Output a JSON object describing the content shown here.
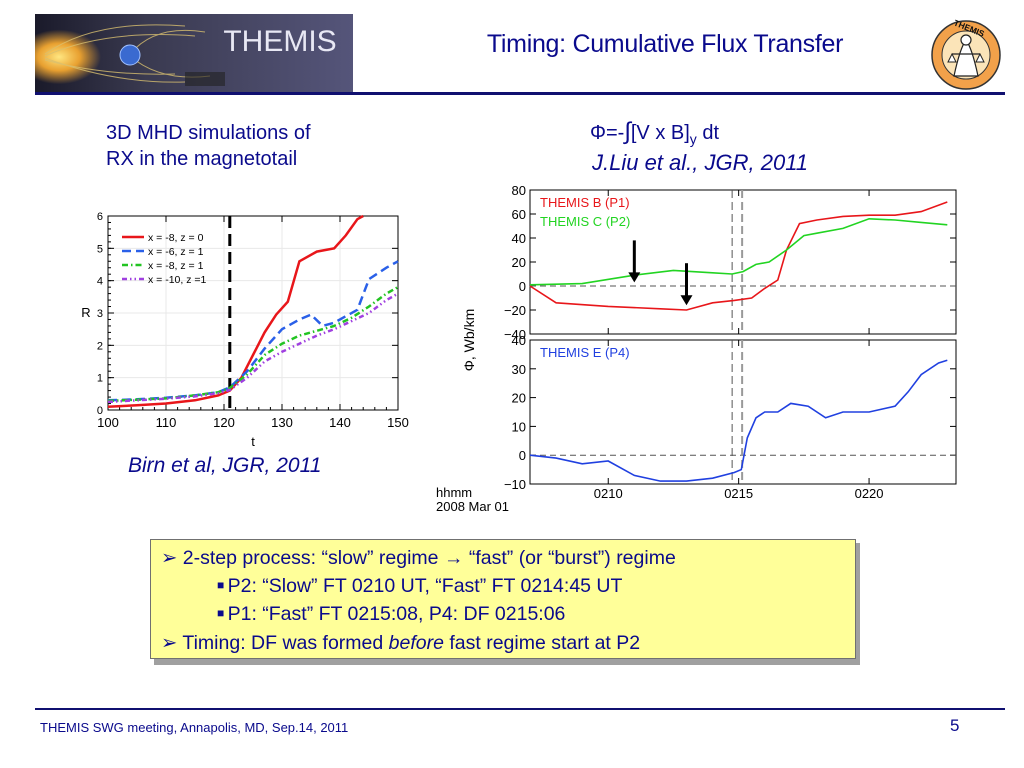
{
  "slide": {
    "title": "Timing: Cumulative Flux Transfer",
    "logo_text": "THEMIS",
    "badge_text": "THEMIS",
    "left_caption_line1": "3D MHD simulations of",
    "left_caption_line2": "RX in the magnetotail",
    "formula": {
      "prefix": "Φ=-",
      "integral": "∫",
      "body": "[V x B]",
      "sub": "y",
      "suffix": " dt"
    },
    "ref_right": "J.Liu et al., JGR, 2011",
    "ref_left": "Birn et al, JGR, 2011",
    "footer": "THEMIS SWG meeting, Annapolis, MD, Sep.14, 2011",
    "page": "5"
  },
  "summary": {
    "l1": {
      "pre": "2-step process: “slow” regime ",
      "arrow": "→",
      "post": " “fast” (or “burst”) regime"
    },
    "l2": "P2: “Slow” FT 0210 UT, “Fast” FT 0214:45 UT",
    "l3": "P1: “Fast”  FT 0215:08,  P4: DF 0215:06",
    "l4": {
      "pre": "Timing: DF was formed ",
      "em": "before",
      "post": " fast regime start at P2"
    }
  },
  "colors": {
    "title": "#0a0a8c",
    "red": "#e8161a",
    "green": "#22d422",
    "blue": "#2040e0",
    "violet": "#a040e0",
    "box": "#ffff99"
  },
  "chart_data": [
    {
      "type": "line",
      "xlabel": "t",
      "ylabel": "R",
      "xlim": [
        100,
        150
      ],
      "ylim": [
        0,
        6
      ],
      "xticks": [
        100,
        110,
        120,
        130,
        140,
        150
      ],
      "yticks": [
        0,
        1,
        2,
        3,
        4,
        5,
        6
      ],
      "vline": 121,
      "legend_position": "top-left",
      "series": [
        {
          "name": "x = -8, z = 0",
          "color": "#e8161a",
          "dash": "solid",
          "points": [
            [
              100,
              0.1
            ],
            [
              105,
              0.15
            ],
            [
              110,
              0.2
            ],
            [
              115,
              0.3
            ],
            [
              119,
              0.45
            ],
            [
              121,
              0.6
            ],
            [
              123,
              1.0
            ],
            [
              125,
              1.7
            ],
            [
              127,
              2.4
            ],
            [
              129,
              2.95
            ],
            [
              131,
              3.35
            ],
            [
              133,
              4.6
            ],
            [
              136,
              4.9
            ],
            [
              139,
              5.0
            ],
            [
              141,
              5.4
            ],
            [
              143,
              5.9
            ],
            [
              144,
              6.0
            ]
          ]
        },
        {
          "name": "x = -6, z = 1",
          "color": "#2a60e8",
          "dash": "long",
          "points": [
            [
              100,
              0.3
            ],
            [
              105,
              0.33
            ],
            [
              110,
              0.38
            ],
            [
              115,
              0.45
            ],
            [
              119,
              0.55
            ],
            [
              121,
              0.7
            ],
            [
              124,
              1.2
            ],
            [
              127,
              1.9
            ],
            [
              130,
              2.5
            ],
            [
              133,
              2.8
            ],
            [
              135,
              2.95
            ],
            [
              137,
              2.6
            ],
            [
              139,
              2.7
            ],
            [
              141,
              2.9
            ],
            [
              143,
              3.1
            ],
            [
              145,
              4.05
            ],
            [
              148,
              4.4
            ],
            [
              150,
              4.6
            ]
          ]
        },
        {
          "name": "x = -8, z = 1",
          "color": "#22c422",
          "dash": "dashdot",
          "points": [
            [
              100,
              0.28
            ],
            [
              105,
              0.32
            ],
            [
              110,
              0.36
            ],
            [
              115,
              0.45
            ],
            [
              119,
              0.55
            ],
            [
              121,
              0.68
            ],
            [
              124,
              1.1
            ],
            [
              127,
              1.7
            ],
            [
              130,
              2.05
            ],
            [
              133,
              2.3
            ],
            [
              136,
              2.45
            ],
            [
              139,
              2.6
            ],
            [
              142,
              2.85
            ],
            [
              145,
              3.2
            ],
            [
              148,
              3.6
            ],
            [
              150,
              3.8
            ]
          ]
        },
        {
          "name": "x = -10, z =1",
          "color": "#a040e0",
          "dash": "dashdotdot",
          "points": [
            [
              100,
              0.25
            ],
            [
              105,
              0.3
            ],
            [
              110,
              0.35
            ],
            [
              115,
              0.42
            ],
            [
              119,
              0.52
            ],
            [
              121,
              0.62
            ],
            [
              124,
              1.0
            ],
            [
              127,
              1.5
            ],
            [
              130,
              1.8
            ],
            [
              133,
              2.05
            ],
            [
              136,
              2.3
            ],
            [
              139,
              2.5
            ],
            [
              142,
              2.75
            ],
            [
              145,
              3.0
            ],
            [
              148,
              3.4
            ],
            [
              150,
              3.6
            ]
          ]
        }
      ]
    },
    {
      "type": "line",
      "ylabel": "Φ, Wb/km",
      "x_axis_title_line1": "hhmm",
      "x_axis_title_line2": "2008  Mar  01",
      "xticks": [
        "0210",
        "0215",
        "0220"
      ],
      "vlines": [
        "0214:45",
        "0215:08"
      ],
      "panels": [
        {
          "ylim": [
            -40,
            80
          ],
          "yticks": [
            80,
            60,
            40,
            20,
            0,
            -20,
            -40
          ],
          "series": [
            {
              "name": "THEMIS B (P1)",
              "color": "#e8161a",
              "points": [
                [
                  "0207:00",
                  0
                ],
                [
                  "0208:00",
                  -14
                ],
                [
                  "0210:00",
                  -17
                ],
                [
                  "0212:00",
                  -19
                ],
                [
                  "0213:00",
                  -20
                ],
                [
                  "0214:00",
                  -14
                ],
                [
                  "0214:50",
                  -12
                ],
                [
                  "0215:30",
                  -10
                ],
                [
                  "0216:00",
                  -2
                ],
                [
                  "0216:30",
                  5
                ],
                [
                  "0216:50",
                  30
                ],
                [
                  "0217:20",
                  52
                ],
                [
                  "0218:00",
                  55
                ],
                [
                  "0219:00",
                  58
                ],
                [
                  "0220:00",
                  59
                ],
                [
                  "0221:00",
                  59
                ],
                [
                  "0222:00",
                  62
                ],
                [
                  "0223:00",
                  70
                ]
              ]
            },
            {
              "name": "THEMIS C (P2)",
              "color": "#22d422",
              "points": [
                [
                  "0207:00",
                  1
                ],
                [
                  "0209:00",
                  2
                ],
                [
                  "0211:00",
                  9
                ],
                [
                  "0212:30",
                  13
                ],
                [
                  "0214:00",
                  11
                ],
                [
                  "0214:45",
                  10
                ],
                [
                  "0215:10",
                  12
                ],
                [
                  "0215:40",
                  18
                ],
                [
                  "0216:10",
                  20
                ],
                [
                  "0216:50",
                  30
                ],
                [
                  "0217:30",
                  42
                ],
                [
                  "0218:00",
                  44
                ],
                [
                  "0219:00",
                  48
                ],
                [
                  "0220:00",
                  56
                ],
                [
                  "0221:00",
                  55
                ],
                [
                  "0222:00",
                  53
                ],
                [
                  "0223:00",
                  51
                ]
              ]
            }
          ],
          "arrows": [
            "0211:00",
            "0213:00"
          ]
        },
        {
          "ylim": [
            -10,
            40
          ],
          "yticks": [
            40,
            30,
            20,
            10,
            0,
            -10
          ],
          "series": [
            {
              "name": "THEMIS E (P4)",
              "color": "#2040e0",
              "points": [
                [
                  "0207:00",
                  0
                ],
                [
                  "0208:00",
                  -1
                ],
                [
                  "0209:00",
                  -3
                ],
                [
                  "0210:00",
                  -2
                ],
                [
                  "0211:00",
                  -7
                ],
                [
                  "0212:00",
                  -9
                ],
                [
                  "0213:00",
                  -9
                ],
                [
                  "0214:00",
                  -8
                ],
                [
                  "0214:50",
                  -6
                ],
                [
                  "0215:06",
                  -5
                ],
                [
                  "0215:20",
                  6
                ],
                [
                  "0215:40",
                  13
                ],
                [
                  "0216:00",
                  15
                ],
                [
                  "0216:30",
                  15
                ],
                [
                  "0217:00",
                  18
                ],
                [
                  "0217:40",
                  17
                ],
                [
                  "0218:20",
                  13
                ],
                [
                  "0219:00",
                  15
                ],
                [
                  "0220:00",
                  15
                ],
                [
                  "0221:00",
                  17
                ],
                [
                  "0221:30",
                  22
                ],
                [
                  "0222:00",
                  28
                ],
                [
                  "0222:40",
                  32
                ],
                [
                  "0223:00",
                  33
                ]
              ]
            }
          ]
        }
      ]
    }
  ]
}
